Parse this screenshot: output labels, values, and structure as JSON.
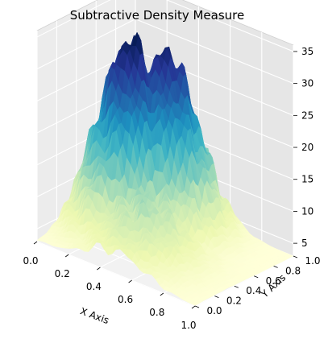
{
  "chart_data": {
    "type": "surface3d",
    "title": "Subtractive Density Measure",
    "xlabel": "X Axis",
    "ylabel": "Y Axis",
    "zlabel": "",
    "xlim": [
      0.0,
      1.0
    ],
    "ylim": [
      0.0,
      1.0
    ],
    "zlim": [
      3,
      36
    ],
    "x_ticks": [
      "0.0",
      "0.2",
      "0.4",
      "0.6",
      "0.8",
      "1.0"
    ],
    "y_ticks": [
      "0.0",
      "0.2",
      "0.4",
      "0.6",
      "0.8",
      "1.0"
    ],
    "z_ticks": [
      "5",
      "10",
      "15",
      "20",
      "25",
      "30",
      "35"
    ],
    "colormap": [
      "#ffffd9",
      "#edf8b1",
      "#c7e9b4",
      "#7fcdbb",
      "#41b6c4",
      "#1d91c0",
      "#225ea8",
      "#253494",
      "#081d58"
    ],
    "grid": true,
    "peaks": [
      {
        "x": 0.25,
        "y": 0.55,
        "z": 33
      },
      {
        "x": 0.38,
        "y": 0.7,
        "z": 31
      },
      {
        "x": 0.5,
        "y": 0.3,
        "z": 12
      }
    ],
    "z_min": 3,
    "z_max": 33
  }
}
